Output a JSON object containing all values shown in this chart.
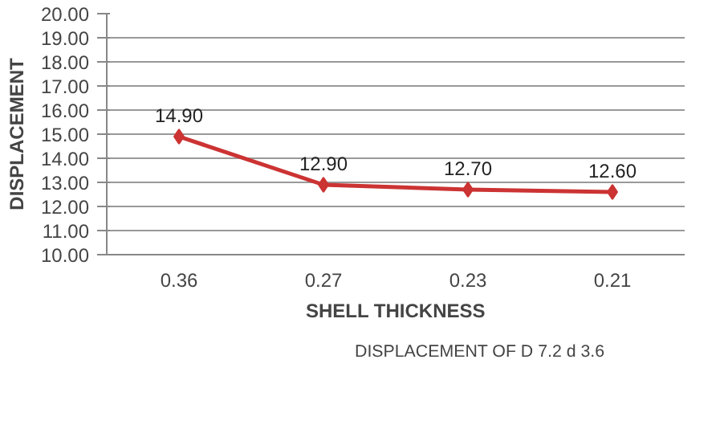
{
  "chart_data": {
    "type": "line",
    "xlabel": "SHELL THICKNESS",
    "ylabel": "DISPLACEMENT",
    "categories": [
      "0.36",
      "0.27",
      "0.23",
      "0.21"
    ],
    "series": [
      {
        "name": "DISPLACEMENT OF D 7.2 d 3.6",
        "color": "#cc3333",
        "values": [
          14.9,
          12.9,
          12.7,
          12.6
        ],
        "value_labels": [
          "14.90",
          "12.90",
          "12.70",
          "12.60"
        ]
      }
    ],
    "ylim": [
      10,
      20
    ],
    "yticks": [
      {
        "value": 10,
        "label": "10.00"
      },
      {
        "value": 11,
        "label": "11.00"
      },
      {
        "value": 12,
        "label": "12.00"
      },
      {
        "value": 13,
        "label": "13.00"
      },
      {
        "value": 14,
        "label": "14.00"
      },
      {
        "value": 15,
        "label": "15.00"
      },
      {
        "value": 16,
        "label": "16.00"
      },
      {
        "value": 17,
        "label": "17.00"
      },
      {
        "value": 18,
        "label": "18.00"
      },
      {
        "value": 19,
        "label": "19.00"
      },
      {
        "value": 20,
        "label": "20.00"
      }
    ],
    "grid": "y",
    "legend": "bottom",
    "marker": "diamond",
    "line_style": "solid"
  }
}
